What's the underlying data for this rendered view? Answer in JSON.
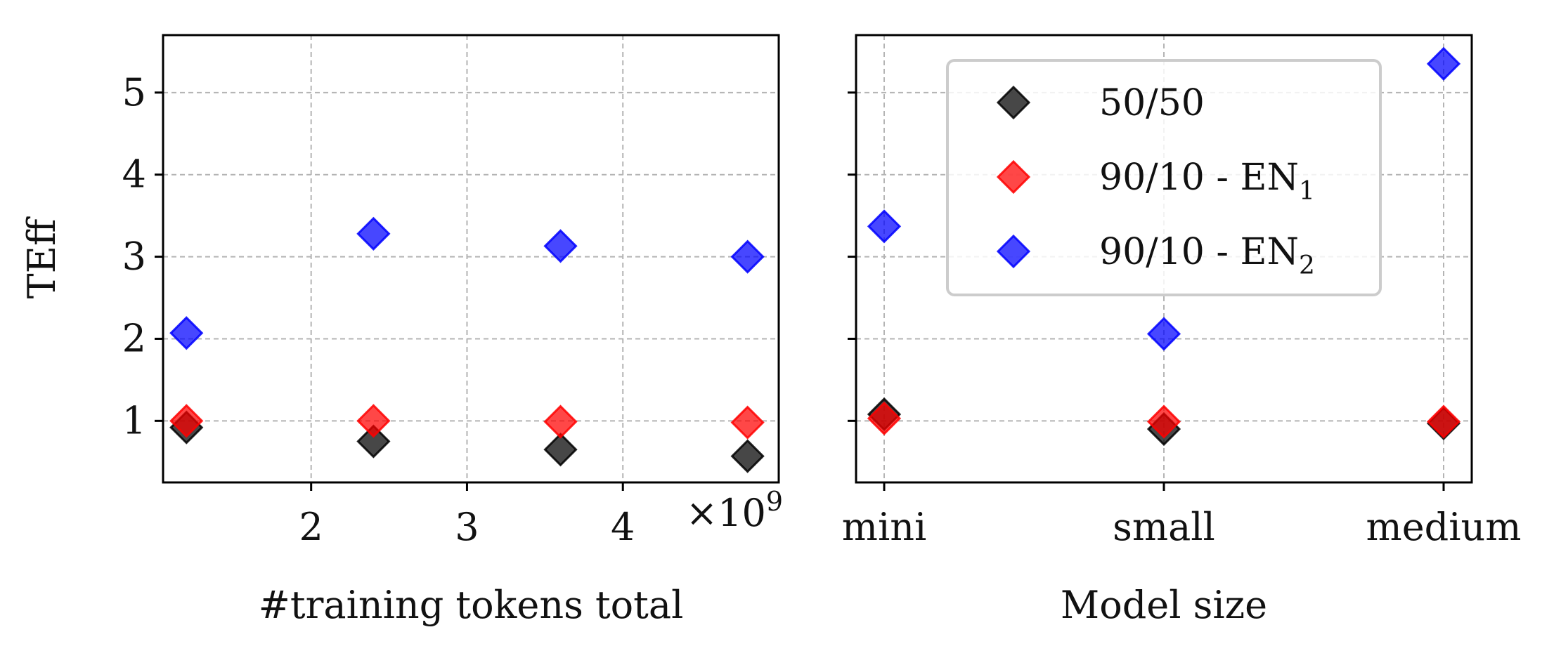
{
  "chart_data": [
    {
      "type": "scatter",
      "marker": "diamond",
      "xlabel": "#training tokens total",
      "ylabel": "TEff",
      "x_multiplier_label": "×10",
      "x_multiplier_exp": "9",
      "xlim": [
        1.05,
        5.0
      ],
      "ylim": [
        0.25,
        5.7
      ],
      "x_ticks": [
        2,
        3,
        4
      ],
      "y_ticks": [
        1,
        2,
        3,
        4,
        5
      ],
      "grid": true,
      "series": [
        {
          "color": "#000000",
          "x": [
            1.2,
            2.4,
            3.6,
            4.8
          ],
          "y": [
            0.92,
            0.75,
            0.65,
            0.57
          ]
        },
        {
          "color": "#ff0000",
          "x": [
            1.2,
            2.4,
            3.6,
            4.8
          ],
          "y": [
            1.0,
            1.0,
            0.99,
            0.98
          ]
        },
        {
          "color": "#0000ff",
          "x": [
            1.2,
            2.4,
            3.6,
            4.8
          ],
          "y": [
            2.07,
            3.28,
            3.13,
            3.0
          ]
        }
      ]
    },
    {
      "type": "scatter",
      "marker": "diamond",
      "xlabel": "Model size",
      "ylabel": "",
      "categories": [
        "mini",
        "small",
        "medium"
      ],
      "ylim": [
        0.25,
        5.7
      ],
      "grid": true,
      "legend_position": "top-center",
      "series": [
        {
          "name": "50/50",
          "name_sub": "",
          "color": "#000000",
          "values": [
            1.08,
            0.9,
            0.97
          ]
        },
        {
          "name": "90/10 - EN",
          "name_sub": "1",
          "color": "#ff0000",
          "values": [
            1.03,
            0.99,
            0.99
          ]
        },
        {
          "name": "90/10 - EN",
          "name_sub": "2",
          "color": "#0000ff",
          "values": [
            3.37,
            2.06,
            5.35
          ]
        }
      ]
    }
  ]
}
